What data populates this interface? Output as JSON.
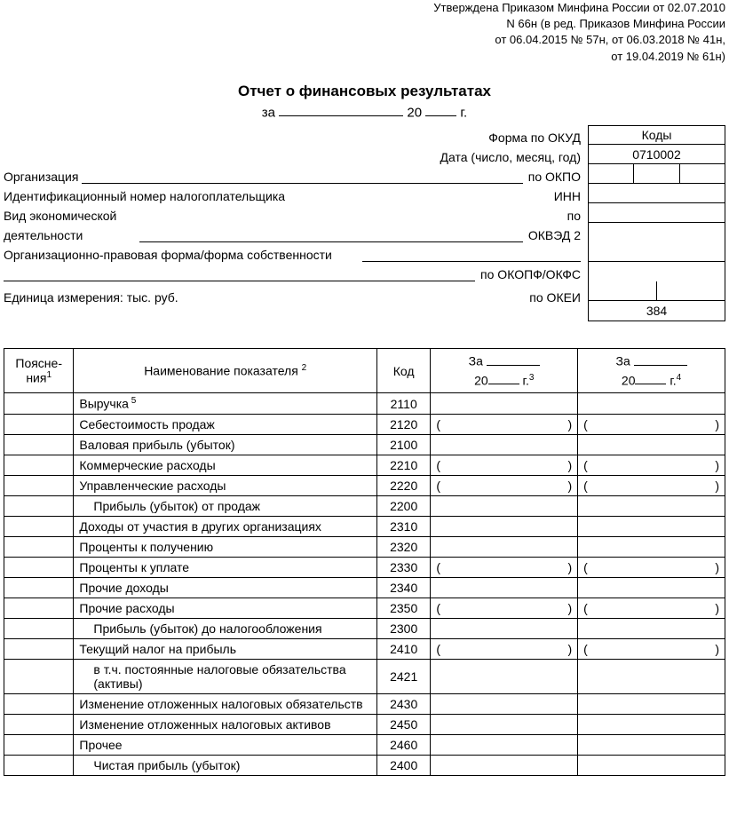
{
  "approval": {
    "line1": "Утверждена Приказом Минфина России от 02.07.2010",
    "line2": "N 66н (в ред. Приказов Минфина России",
    "line3": "от 06.04.2015 № 57н, от 06.03.2018 № 41н,",
    "line4": "от 19.04.2019 № 61н)"
  },
  "title": "Отчет о финансовых результатах",
  "period": {
    "prefix": "за",
    "year_prefix": "20",
    "year_suffix": "г."
  },
  "codes_box": {
    "header": "Коды",
    "okud_value": "0710002",
    "okei_value": "384"
  },
  "header_rows": {
    "okud": "Форма по ОКУД",
    "date": "Дата (число, месяц, год)",
    "org_label": "Организация",
    "okpo": "по ОКПО",
    "inn_label": "Идентификационный номер налогоплательщика",
    "inn": "ИНН",
    "activity_label1": "Вид экономической",
    "activity_label2": "деятельности",
    "po": "по",
    "okved": "ОКВЭД 2",
    "legal_form_label": "Организационно-правовая форма/форма собственности",
    "okopf": "по ОКОПФ/ОКФС",
    "unit_label": "Единица измерения: тыс. руб.",
    "okei": "по ОКЕИ"
  },
  "table": {
    "columns": {
      "explanations": "Поясне-\nния",
      "explanations_sup": "1",
      "name": "Наименование показателя",
      "name_sup": "2",
      "code": "Код",
      "period_prefix": "За",
      "period_year_prefix": "20",
      "period_year_suffix": "г.",
      "period1_sup": "3",
      "period2_sup": "4"
    },
    "rows": [
      {
        "name": "Выручка",
        "sup": "5",
        "code": "2110",
        "paren": false,
        "indent": 0
      },
      {
        "name": "Себестоимость продаж",
        "code": "2120",
        "paren": true,
        "indent": 0
      },
      {
        "name": "Валовая прибыль (убыток)",
        "code": "2100",
        "paren": false,
        "indent": 0
      },
      {
        "name": "Коммерческие расходы",
        "code": "2210",
        "paren": true,
        "indent": 0
      },
      {
        "name": "Управленческие расходы",
        "code": "2220",
        "paren": true,
        "indent": 0
      },
      {
        "name": "Прибыль (убыток) от продаж",
        "code": "2200",
        "paren": false,
        "indent": 1
      },
      {
        "name": "Доходы от участия в других организациях",
        "code": "2310",
        "paren": false,
        "indent": 0
      },
      {
        "name": "Проценты к получению",
        "code": "2320",
        "paren": false,
        "indent": 0
      },
      {
        "name": "Проценты к уплате",
        "code": "2330",
        "paren": true,
        "indent": 0
      },
      {
        "name": "Прочие доходы",
        "code": "2340",
        "paren": false,
        "indent": 0
      },
      {
        "name": "Прочие расходы",
        "code": "2350",
        "paren": true,
        "indent": 0
      },
      {
        "name": "Прибыль (убыток) до налогообложения",
        "code": "2300",
        "paren": false,
        "indent": 1
      },
      {
        "name": "Текущий налог на прибыль",
        "code": "2410",
        "paren": true,
        "indent": 0
      },
      {
        "name": "в т.ч. постоянные налоговые обязательства (активы)",
        "code": "2421",
        "paren": false,
        "indent": 1
      },
      {
        "name": "Изменение отложенных налоговых обязательств",
        "code": "2430",
        "paren": false,
        "indent": 0
      },
      {
        "name": "Изменение отложенных налоговых активов",
        "code": "2450",
        "paren": false,
        "indent": 0
      },
      {
        "name": "Прочее",
        "code": "2460",
        "paren": false,
        "indent": 0
      },
      {
        "name": "Чистая прибыль (убыток)",
        "code": "2400",
        "paren": false,
        "indent": 1
      }
    ]
  }
}
